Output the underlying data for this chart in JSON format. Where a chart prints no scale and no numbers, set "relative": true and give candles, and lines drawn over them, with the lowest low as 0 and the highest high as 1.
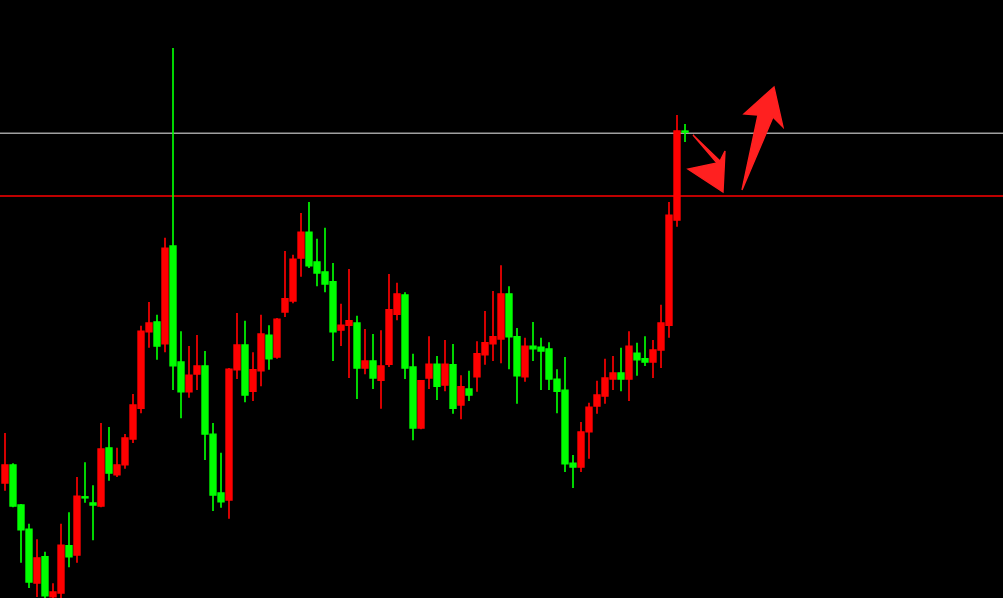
{
  "chart_data": {
    "type": "candlestick",
    "relative": true,
    "categories": [
      null,
      null,
      null,
      null,
      null,
      null,
      null,
      null,
      null,
      null,
      null,
      null,
      null,
      null,
      null,
      null,
      null,
      null,
      null,
      null,
      null,
      null,
      null,
      null,
      null,
      null,
      null,
      null,
      null,
      null,
      null,
      null,
      null,
      null,
      null,
      null,
      null,
      null,
      null,
      null,
      null,
      null,
      null,
      null,
      null,
      null,
      null,
      null,
      null,
      null,
      null,
      null,
      null,
      null,
      null,
      null,
      null,
      null,
      null,
      null,
      null,
      null,
      null,
      null,
      null,
      null,
      null,
      null,
      null,
      null,
      null,
      null,
      null,
      null,
      null,
      null,
      null,
      null,
      null,
      null,
      null,
      null,
      null,
      null,
      null,
      null
    ],
    "ohlc": [
      [
        0.209,
        0.3,
        0.195,
        0.242
      ],
      [
        0.242,
        0.245,
        0.165,
        0.167
      ],
      [
        0.169,
        0.171,
        0.064,
        0.124
      ],
      [
        0.125,
        0.135,
        0.018,
        0.029
      ],
      [
        0.027,
        0.107,
        0.002,
        0.073
      ],
      [
        0.075,
        0.084,
        0,
        0.004
      ],
      [
        0.002,
        0.027,
        0,
        0.011
      ],
      [
        0.009,
        0.135,
        0,
        0.096
      ],
      [
        0.095,
        0.156,
        0.056,
        0.075
      ],
      [
        0.078,
        0.22,
        0.064,
        0.185
      ],
      [
        0.184,
        0.247,
        0.173,
        0.182
      ],
      [
        0.173,
        0.205,
        0.105,
        0.169
      ],
      [
        0.167,
        0.318,
        0.165,
        0.271
      ],
      [
        0.273,
        0.311,
        0.213,
        0.227
      ],
      [
        0.224,
        0.273,
        0.22,
        0.242
      ],
      [
        0.242,
        0.298,
        0.235,
        0.291
      ],
      [
        0.289,
        0.371,
        0.282,
        0.351
      ],
      [
        0.345,
        0.495,
        0.336,
        0.485
      ],
      [
        0.484,
        0.538,
        0.455,
        0.5
      ],
      [
        0.502,
        0.515,
        0.433,
        0.458
      ],
      [
        0.462,
        0.655,
        0.447,
        0.636
      ],
      [
        0.64,
        1,
        0.378,
        0.422
      ],
      [
        0.429,
        0.485,
        0.327,
        0.375
      ],
      [
        0.375,
        0.458,
        0.364,
        0.405
      ],
      [
        0.407,
        0.478,
        0.378,
        0.422
      ],
      [
        0.422,
        0.449,
        0.251,
        0.298
      ],
      [
        0.298,
        0.318,
        0.158,
        0.187
      ],
      [
        0.191,
        0.264,
        0.164,
        0.175
      ],
      [
        0.178,
        0.418,
        0.144,
        0.416
      ],
      [
        0.415,
        0.518,
        0.398,
        0.46
      ],
      [
        0.46,
        0.504,
        0.356,
        0.369
      ],
      [
        0.376,
        0.447,
        0.358,
        0.415
      ],
      [
        0.413,
        0.515,
        0.385,
        0.48
      ],
      [
        0.478,
        0.496,
        0.415,
        0.435
      ],
      [
        0.438,
        0.509,
        0.435,
        0.507
      ],
      [
        0.52,
        0.631,
        0.511,
        0.544
      ],
      [
        0.54,
        0.624,
        0.536,
        0.616
      ],
      [
        0.618,
        0.7,
        0.584,
        0.665
      ],
      [
        0.665,
        0.72,
        0.6,
        0.604
      ],
      [
        0.611,
        0.653,
        0.567,
        0.591
      ],
      [
        0.593,
        0.673,
        0.556,
        0.571
      ],
      [
        0.575,
        0.609,
        0.431,
        0.484
      ],
      [
        0.487,
        0.535,
        0.458,
        0.496
      ],
      [
        0.496,
        0.598,
        0.4,
        0.504
      ],
      [
        0.5,
        0.513,
        0.362,
        0.418
      ],
      [
        0.418,
        0.489,
        0.407,
        0.431
      ],
      [
        0.431,
        0.48,
        0.38,
        0.4
      ],
      [
        0.396,
        0.487,
        0.344,
        0.422
      ],
      [
        0.425,
        0.589,
        0.42,
        0.524
      ],
      [
        0.516,
        0.573,
        0.505,
        0.553
      ],
      [
        0.551,
        0.556,
        0.398,
        0.418
      ],
      [
        0.42,
        0.444,
        0.287,
        0.309
      ],
      [
        0.309,
        0.396,
        0.307,
        0.395
      ],
      [
        0.4,
        0.476,
        0.38,
        0.425
      ],
      [
        0.425,
        0.44,
        0.36,
        0.385
      ],
      [
        0.387,
        0.469,
        0.376,
        0.425
      ],
      [
        0.424,
        0.462,
        0.335,
        0.345
      ],
      [
        0.351,
        0.405,
        0.325,
        0.384
      ],
      [
        0.38,
        0.413,
        0.358,
        0.369
      ],
      [
        0.402,
        0.467,
        0.375,
        0.444
      ],
      [
        0.442,
        0.522,
        0.424,
        0.464
      ],
      [
        0.462,
        0.558,
        0.431,
        0.475
      ],
      [
        0.471,
        0.605,
        0.427,
        0.553
      ],
      [
        0.553,
        0.567,
        0.416,
        0.475
      ],
      [
        0.475,
        0.491,
        0.353,
        0.404
      ],
      [
        0.402,
        0.473,
        0.393,
        0.458
      ],
      [
        0.458,
        0.502,
        0.431,
        0.453
      ],
      [
        0.456,
        0.473,
        0.378,
        0.449
      ],
      [
        0.453,
        0.465,
        0.378,
        0.398
      ],
      [
        0.398,
        0.416,
        0.336,
        0.376
      ],
      [
        0.378,
        0.438,
        0.229,
        0.244
      ],
      [
        0.245,
        0.26,
        0.2,
        0.238
      ],
      [
        0.238,
        0.32,
        0.229,
        0.302
      ],
      [
        0.302,
        0.355,
        0.253,
        0.347
      ],
      [
        0.349,
        0.395,
        0.335,
        0.369
      ],
      [
        0.367,
        0.435,
        0.353,
        0.4
      ],
      [
        0.398,
        0.44,
        0.378,
        0.409
      ],
      [
        0.409,
        0.455,
        0.376,
        0.398
      ],
      [
        0.398,
        0.485,
        0.358,
        0.458
      ],
      [
        0.445,
        0.464,
        0.404,
        0.433
      ],
      [
        0.435,
        0.476,
        0.422,
        0.429
      ],
      [
        0.429,
        0.469,
        0.4,
        0.451
      ],
      [
        0.451,
        0.533,
        0.418,
        0.5
      ],
      [
        0.496,
        0.72,
        0.473,
        0.696
      ],
      [
        0.687,
        0.878,
        0.675,
        0.849
      ],
      [
        0.849,
        0.862,
        0.829,
        0.847
      ]
    ],
    "colors": [
      "#ff0000",
      "#00ff00",
      "#00ff00",
      "#00ff00",
      "#ff0000",
      "#00ff00",
      "#ff0000",
      "#ff0000",
      "#00ff00",
      "#ff0000",
      "#00ff00",
      "#00ff00",
      "#ff0000",
      "#00ff00",
      "#ff0000",
      "#ff0000",
      "#ff0000",
      "#ff0000",
      "#ff0000",
      "#00ff00",
      "#ff0000",
      "#00ff00",
      "#00ff00",
      "#ff0000",
      "#ff0000",
      "#00ff00",
      "#00ff00",
      "#00ff00",
      "#ff0000",
      "#ff0000",
      "#00ff00",
      "#ff0000",
      "#ff0000",
      "#00ff00",
      "#ff0000",
      "#ff0000",
      "#ff0000",
      "#ff0000",
      "#00ff00",
      "#00ff00",
      "#00ff00",
      "#00ff00",
      "#ff0000",
      "#ff0000",
      "#00ff00",
      "#ff0000",
      "#00ff00",
      "#ff0000",
      "#ff0000",
      "#ff0000",
      "#00ff00",
      "#00ff00",
      "#ff0000",
      "#ff0000",
      "#00ff00",
      "#ff0000",
      "#00ff00",
      "#ff0000",
      "#00ff00",
      "#ff0000",
      "#ff0000",
      "#ff0000",
      "#ff0000",
      "#00ff00",
      "#00ff00",
      "#ff0000",
      "#00ff00",
      "#00ff00",
      "#00ff00",
      "#00ff00",
      "#00ff00",
      "#00ff00",
      "#ff0000",
      "#ff0000",
      "#ff0000",
      "#ff0000",
      "#ff0000",
      "#00ff00",
      "#ff0000",
      "#00ff00",
      "#00ff00",
      "#ff0000",
      "#ff0000",
      "#ff0000",
      "#ff0000",
      "#00ff00"
    ],
    "ref_lines": [
      {
        "axis": "y",
        "value": 0.845,
        "color": "#a0a0a0"
      },
      {
        "axis": "y",
        "value": 0.731,
        "color": "#ff0000"
      }
    ],
    "grid": false,
    "legend": false
  }
}
